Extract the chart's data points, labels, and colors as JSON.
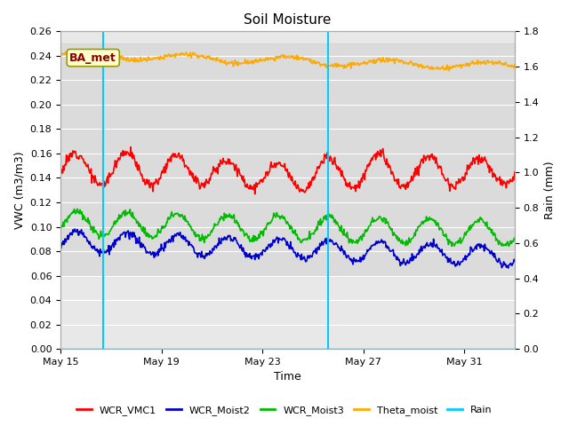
{
  "title": "Soil Moisture",
  "ylabel_left": "VWC (m3/m3)",
  "ylabel_right": "Rain (mm)",
  "xlabel": "Time",
  "ylim_left": [
    0.0,
    0.26
  ],
  "ylim_right": [
    0.0,
    1.8
  ],
  "bg_color": "#ffffff",
  "plot_bg_color": "#e8e8e8",
  "label_box_text": "BA_met",
  "label_box_facecolor": "#ffffcc",
  "label_box_edgecolor": "#999900",
  "label_box_textcolor": "#880000",
  "rain_line1_day": 1.7,
  "rain_line2_day": 10.6,
  "grid_color": "#ffffff",
  "band_color": "#d8d8d8",
  "line_colors": {
    "WCR_VMC1": "#ff0000",
    "WCR_Moist2": "#0000cc",
    "WCR_Moist3": "#00bb00",
    "Theta_moist": "#ffaa00",
    "Rain": "#00ccff"
  },
  "xtick_positions": [
    0,
    4,
    8,
    12,
    16
  ],
  "xtick_labels": [
    "May 15",
    "May 19",
    "May 23",
    "May 27",
    "May 31"
  ],
  "yticks_left": [
    0.0,
    0.02,
    0.04,
    0.06,
    0.08,
    0.1,
    0.12,
    0.14,
    0.16,
    0.18,
    0.2,
    0.22,
    0.24,
    0.26
  ],
  "yticks_right": [
    0.0,
    0.2,
    0.4,
    0.6,
    0.8,
    1.0,
    1.2,
    1.4,
    1.6,
    1.8
  ],
  "xlim": [
    0,
    18
  ],
  "n_points": 700,
  "total_days": 18
}
